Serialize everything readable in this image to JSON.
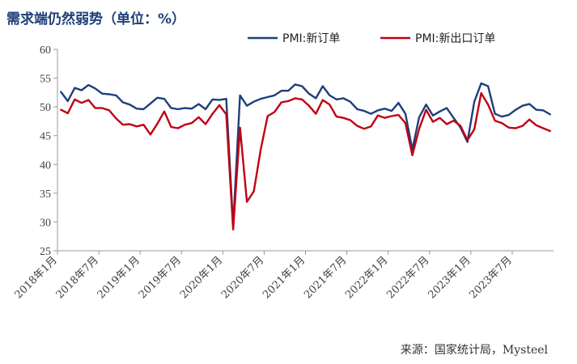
{
  "chart_data": {
    "type": "line",
    "title": "需求端仍然弱势（单位：%）",
    "source": "来源：国家统计局，Mysteel",
    "ylim": [
      25,
      60
    ],
    "yticks": [
      "25",
      "30",
      "35",
      "40",
      "45",
      "50",
      "55",
      "60"
    ],
    "xtick_labels": [
      "2018年1月",
      "2018年7月",
      "2019年1月",
      "2019年7月",
      "2020年1月",
      "2020年7月",
      "2021年1月",
      "2021年7月",
      "2022年1月",
      "2022年7月",
      "2023年1月",
      "2023年7月"
    ],
    "x": [
      "2018-01",
      "2018-02",
      "2018-03",
      "2018-04",
      "2018-05",
      "2018-06",
      "2018-07",
      "2018-08",
      "2018-09",
      "2018-10",
      "2018-11",
      "2018-12",
      "2019-01",
      "2019-02",
      "2019-03",
      "2019-04",
      "2019-05",
      "2019-06",
      "2019-07",
      "2019-08",
      "2019-09",
      "2019-10",
      "2019-11",
      "2019-12",
      "2020-01",
      "2020-02",
      "2020-03",
      "2020-04",
      "2020-05",
      "2020-06",
      "2020-07",
      "2020-08",
      "2020-09",
      "2020-10",
      "2020-11",
      "2020-12",
      "2021-01",
      "2021-02",
      "2021-03",
      "2021-04",
      "2021-05",
      "2021-06",
      "2021-07",
      "2021-08",
      "2021-09",
      "2021-10",
      "2021-11",
      "2021-12",
      "2022-01",
      "2022-02",
      "2022-03",
      "2022-04",
      "2022-05",
      "2022-06",
      "2022-07",
      "2022-08",
      "2022-09",
      "2022-10",
      "2022-11",
      "2022-12",
      "2023-01",
      "2023-02",
      "2023-03",
      "2023-04",
      "2023-05",
      "2023-06",
      "2023-07",
      "2023-08",
      "2023-09",
      "2023-10",
      "2023-11",
      "2023-12"
    ],
    "series": [
      {
        "name": "PMI:新订单",
        "color": "#1f3f7a",
        "values": [
          52.6,
          51.0,
          53.3,
          52.9,
          53.8,
          53.2,
          52.3,
          52.2,
          52.0,
          50.8,
          50.4,
          49.7,
          49.6,
          50.6,
          51.6,
          51.4,
          49.8,
          49.6,
          49.8,
          49.7,
          50.5,
          49.6,
          51.3,
          51.2,
          51.4,
          29.3,
          52.0,
          50.2,
          50.9,
          51.4,
          51.7,
          52.0,
          52.8,
          52.8,
          53.9,
          53.6,
          52.3,
          51.5,
          53.6,
          52.0,
          51.3,
          51.5,
          50.9,
          49.6,
          49.3,
          48.8,
          49.4,
          49.7,
          49.3,
          50.7,
          48.8,
          42.6,
          48.2,
          50.4,
          48.5,
          49.2,
          49.8,
          48.1,
          46.4,
          43.9,
          50.9,
          54.1,
          53.6,
          48.8,
          48.3,
          48.6,
          49.5,
          50.2,
          50.5,
          49.5,
          49.4,
          48.7
        ]
      },
      {
        "name": "PMI:新出口订单",
        "color": "#c00014",
        "values": [
          49.5,
          48.9,
          51.3,
          50.7,
          51.2,
          49.8,
          49.8,
          49.4,
          48.0,
          46.9,
          47.0,
          46.6,
          46.9,
          45.2,
          47.1,
          49.2,
          46.5,
          46.3,
          46.9,
          47.2,
          48.2,
          47.0,
          48.8,
          50.3,
          48.7,
          28.7,
          46.4,
          33.5,
          35.3,
          42.6,
          48.4,
          49.1,
          50.8,
          51.0,
          51.5,
          51.3,
          50.2,
          48.8,
          51.2,
          50.4,
          48.3,
          48.1,
          47.7,
          46.7,
          46.2,
          46.6,
          48.5,
          48.1,
          48.4,
          48.6,
          47.2,
          41.6,
          46.2,
          49.5,
          47.4,
          48.1,
          47.0,
          47.6,
          46.7,
          44.2,
          46.1,
          52.4,
          50.4,
          47.6,
          47.2,
          46.4,
          46.3,
          46.7,
          47.8,
          46.8,
          46.3,
          45.8
        ]
      }
    ]
  }
}
